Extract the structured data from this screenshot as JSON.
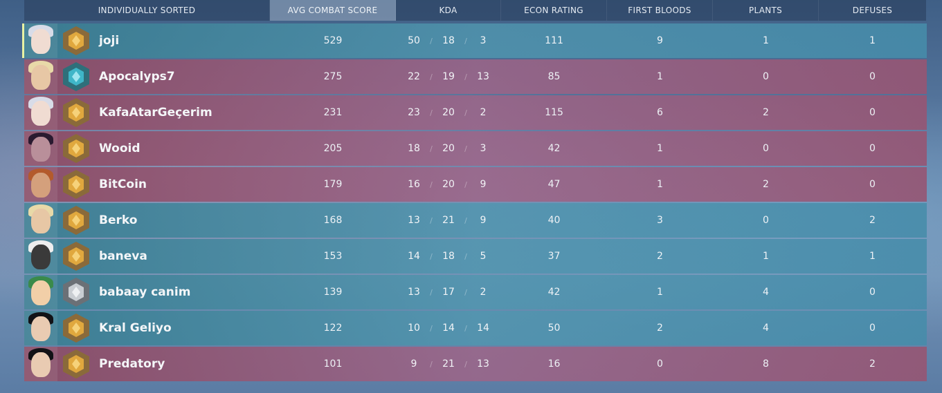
{
  "header": {
    "name": "INDIVIDUALLY SORTED",
    "acs": "AVG COMBAT SCORE",
    "kda": "KDA",
    "econ": "ECON RATING",
    "first_bloods": "FIRST BLOODS",
    "plants": "PLANTS",
    "defuses": "DEFUSES"
  },
  "colors": {
    "team_blue": "#4f93ad",
    "team_red": "#9a5f85",
    "self_marker": "#e9f2a3",
    "rank_gold": "#d9a441",
    "rank_diamond": "#3fb6c8",
    "rank_silver": "#c9cdd2"
  },
  "players": [
    {
      "name": "joji",
      "team": "blue",
      "agent": "jett-icon",
      "rank": "gold-rank-icon",
      "acs": "529",
      "k": "50",
      "d": "18",
      "a": "3",
      "econ": "111",
      "fb": "9",
      "plants": "1",
      "defuses": "1",
      "me": true
    },
    {
      "name": "Apocalyps7",
      "team": "red",
      "agent": "phoenix-icon",
      "rank": "diamond-rank-icon",
      "acs": "275",
      "k": "22",
      "d": "19",
      "a": "13",
      "econ": "85",
      "fb": "1",
      "plants": "0",
      "defuses": "0"
    },
    {
      "name": "KafaAtarGeçerim",
      "team": "red",
      "agent": "jett-icon",
      "rank": "gold-rank-icon",
      "acs": "231",
      "k": "23",
      "d": "20",
      "a": "2",
      "econ": "115",
      "fb": "6",
      "plants": "2",
      "defuses": "0"
    },
    {
      "name": "Wooid",
      "team": "red",
      "agent": "reyna-icon",
      "rank": "gold-rank-icon",
      "acs": "205",
      "k": "18",
      "d": "20",
      "a": "3",
      "econ": "42",
      "fb": "1",
      "plants": "0",
      "defuses": "0"
    },
    {
      "name": "BitCoin",
      "team": "red",
      "agent": "brimstone-icon",
      "rank": "gold-rank-icon",
      "acs": "179",
      "k": "16",
      "d": "20",
      "a": "9",
      "econ": "47",
      "fb": "1",
      "plants": "2",
      "defuses": "0"
    },
    {
      "name": "Berko",
      "team": "blue",
      "agent": "phoenix-icon",
      "rank": "gold-rank-icon",
      "acs": "168",
      "k": "13",
      "d": "21",
      "a": "9",
      "econ": "40",
      "fb": "3",
      "plants": "0",
      "defuses": "2"
    },
    {
      "name": "baneva",
      "team": "blue",
      "agent": "cypher-icon",
      "rank": "gold-rank-icon",
      "acs": "153",
      "k": "14",
      "d": "18",
      "a": "5",
      "econ": "37",
      "fb": "2",
      "plants": "1",
      "defuses": "1"
    },
    {
      "name": "babaay canim",
      "team": "blue",
      "agent": "killjoy-icon",
      "rank": "silver-rank-icon",
      "acs": "139",
      "k": "13",
      "d": "17",
      "a": "2",
      "econ": "42",
      "fb": "1",
      "plants": "4",
      "defuses": "0"
    },
    {
      "name": "Kral Geliyo",
      "team": "blue",
      "agent": "sage-icon",
      "rank": "gold-rank-icon",
      "acs": "122",
      "k": "10",
      "d": "14",
      "a": "14",
      "econ": "50",
      "fb": "2",
      "plants": "4",
      "defuses": "0"
    },
    {
      "name": "Predatory",
      "team": "red",
      "agent": "sage-icon",
      "rank": "gold-rank-icon",
      "acs": "101",
      "k": "9",
      "d": "21",
      "a": "13",
      "econ": "16",
      "fb": "0",
      "plants": "8",
      "defuses": "2"
    }
  ]
}
